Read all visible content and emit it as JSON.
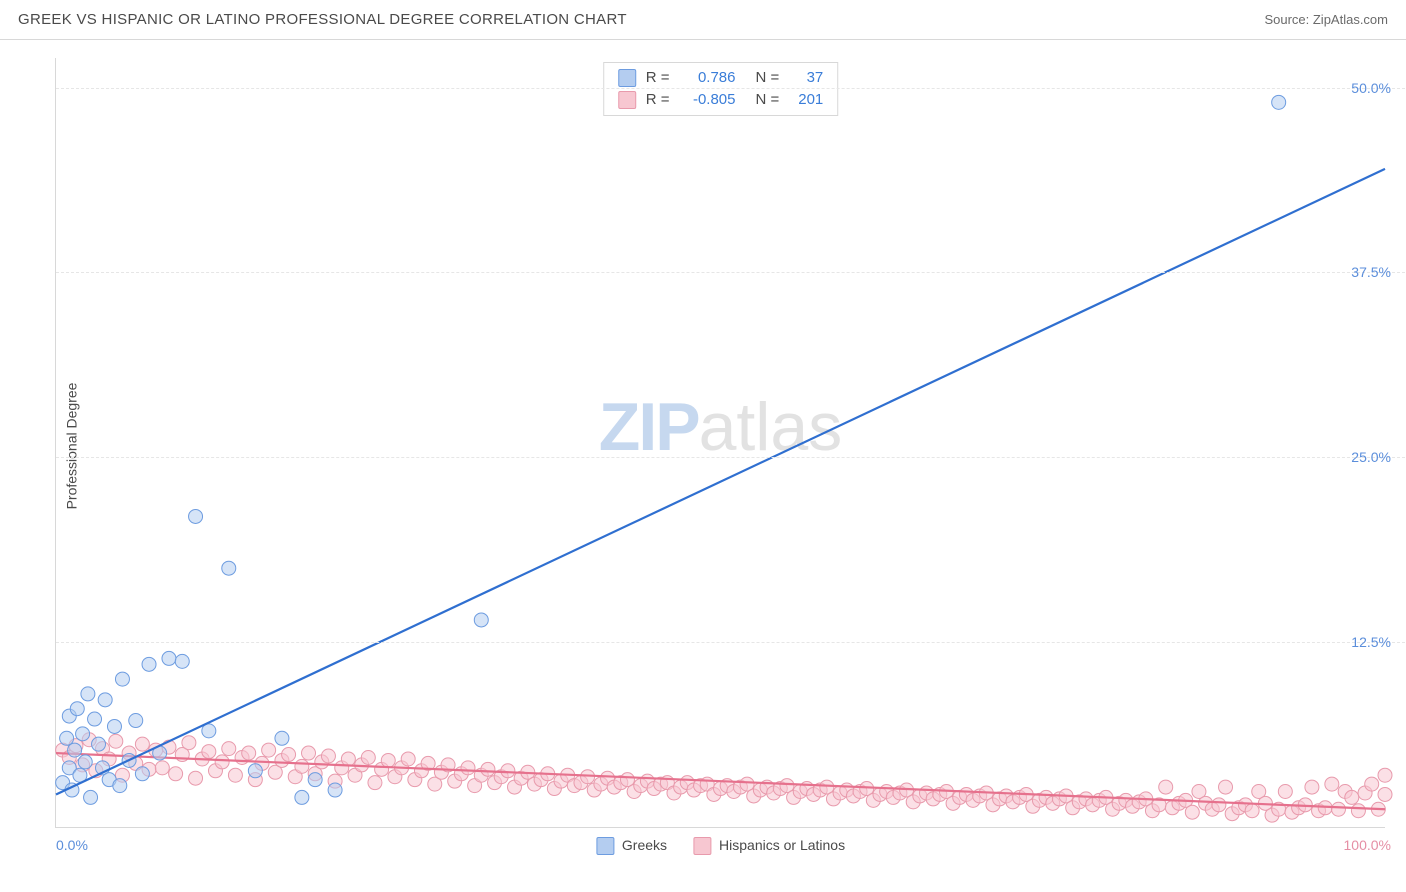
{
  "header": {
    "title": "GREEK VS HISPANIC OR LATINO PROFESSIONAL DEGREE CORRELATION CHART",
    "source_prefix": "Source: ",
    "source_name": "ZipAtlas.com"
  },
  "axes": {
    "ylabel": "Professional Degree",
    "xlim": [
      0,
      100
    ],
    "ylim": [
      0,
      52
    ],
    "yticks": [
      {
        "v": 12.5,
        "label": "12.5%",
        "color": "#5b8edb"
      },
      {
        "v": 25.0,
        "label": "25.0%",
        "color": "#5b8edb"
      },
      {
        "v": 37.5,
        "label": "37.5%",
        "color": "#5b8edb"
      },
      {
        "v": 50.0,
        "label": "50.0%",
        "color": "#5b8edb"
      }
    ],
    "xticks": [
      {
        "v": 0,
        "label": "0.0%",
        "color": "#5b8edb",
        "align": "left"
      },
      {
        "v": 100,
        "label": "100.0%",
        "color": "#e58fa5",
        "align": "right"
      }
    ]
  },
  "series": {
    "greek": {
      "label": "Greeks",
      "fill": "#b4cdf0",
      "stroke": "#6d9ce0",
      "line_color": "#2f6fd0",
      "marker_r": 7,
      "marker_opacity": 0.55,
      "line_width": 2.2,
      "trend": {
        "x1": 0,
        "y1": 2.2,
        "x2": 100,
        "y2": 44.5
      },
      "R": "0.786",
      "N": "37",
      "points": [
        [
          0.5,
          3.0
        ],
        [
          0.8,
          6.0
        ],
        [
          1.0,
          4.0
        ],
        [
          1.0,
          7.5
        ],
        [
          1.2,
          2.5
        ],
        [
          1.4,
          5.2
        ],
        [
          1.6,
          8.0
        ],
        [
          1.8,
          3.5
        ],
        [
          2.0,
          6.3
        ],
        [
          2.2,
          4.4
        ],
        [
          2.4,
          9.0
        ],
        [
          2.6,
          2.0
        ],
        [
          2.9,
          7.3
        ],
        [
          3.2,
          5.6
        ],
        [
          3.5,
          4.0
        ],
        [
          3.7,
          8.6
        ],
        [
          4.0,
          3.2
        ],
        [
          4.4,
          6.8
        ],
        [
          4.8,
          2.8
        ],
        [
          5.0,
          10.0
        ],
        [
          5.5,
          4.5
        ],
        [
          6.0,
          7.2
        ],
        [
          6.5,
          3.6
        ],
        [
          7.0,
          11.0
        ],
        [
          7.8,
          5.0
        ],
        [
          8.5,
          11.4
        ],
        [
          9.5,
          11.2
        ],
        [
          10.5,
          21.0
        ],
        [
          11.5,
          6.5
        ],
        [
          13.0,
          17.5
        ],
        [
          15.0,
          3.8
        ],
        [
          17.0,
          6.0
        ],
        [
          18.5,
          2.0
        ],
        [
          19.5,
          3.2
        ],
        [
          21.0,
          2.5
        ],
        [
          32.0,
          14.0
        ],
        [
          92.0,
          49.0
        ]
      ]
    },
    "hispanic": {
      "label": "Hispanics or Latinos",
      "fill": "#f7c7d1",
      "stroke": "#e89aac",
      "line_color": "#e6718d",
      "marker_r": 7,
      "marker_opacity": 0.55,
      "line_width": 2.2,
      "trend": {
        "x1": 0,
        "y1": 5.0,
        "x2": 100,
        "y2": 1.2
      },
      "R": "-0.805",
      "N": "201",
      "points": [
        [
          0.5,
          5.2
        ],
        [
          1.0,
          4.7
        ],
        [
          1.5,
          5.5
        ],
        [
          2.0,
          4.2
        ],
        [
          2.5,
          5.9
        ],
        [
          3.0,
          3.8
        ],
        [
          3.5,
          5.3
        ],
        [
          4.0,
          4.6
        ],
        [
          4.5,
          5.8
        ],
        [
          5.0,
          3.5
        ],
        [
          5.5,
          5.0
        ],
        [
          6.0,
          4.3
        ],
        [
          6.5,
          5.6
        ],
        [
          7.0,
          3.9
        ],
        [
          7.5,
          5.2
        ],
        [
          8.0,
          4.0
        ],
        [
          8.5,
          5.4
        ],
        [
          9.0,
          3.6
        ],
        [
          9.5,
          4.9
        ],
        [
          10.0,
          5.7
        ],
        [
          10.5,
          3.3
        ],
        [
          11.0,
          4.6
        ],
        [
          11.5,
          5.1
        ],
        [
          12.0,
          3.8
        ],
        [
          12.5,
          4.4
        ],
        [
          13.0,
          5.3
        ],
        [
          13.5,
          3.5
        ],
        [
          14.0,
          4.7
        ],
        [
          14.5,
          5.0
        ],
        [
          15.0,
          3.2
        ],
        [
          15.5,
          4.3
        ],
        [
          16.0,
          5.2
        ],
        [
          16.5,
          3.7
        ],
        [
          17.0,
          4.5
        ],
        [
          17.5,
          4.9
        ],
        [
          18.0,
          3.4
        ],
        [
          18.5,
          4.1
        ],
        [
          19.0,
          5.0
        ],
        [
          19.5,
          3.6
        ],
        [
          20.0,
          4.4
        ],
        [
          20.5,
          4.8
        ],
        [
          21.0,
          3.1
        ],
        [
          21.5,
          4.0
        ],
        [
          22.0,
          4.6
        ],
        [
          22.5,
          3.5
        ],
        [
          23.0,
          4.2
        ],
        [
          23.5,
          4.7
        ],
        [
          24.0,
          3.0
        ],
        [
          24.5,
          3.9
        ],
        [
          25.0,
          4.5
        ],
        [
          25.5,
          3.4
        ],
        [
          26.0,
          4.0
        ],
        [
          26.5,
          4.6
        ],
        [
          27.0,
          3.2
        ],
        [
          27.5,
          3.8
        ],
        [
          28.0,
          4.3
        ],
        [
          28.5,
          2.9
        ],
        [
          29.0,
          3.7
        ],
        [
          29.5,
          4.2
        ],
        [
          30.0,
          3.1
        ],
        [
          30.5,
          3.6
        ],
        [
          31.0,
          4.0
        ],
        [
          31.5,
          2.8
        ],
        [
          32.0,
          3.5
        ],
        [
          32.5,
          3.9
        ],
        [
          33.0,
          3.0
        ],
        [
          33.5,
          3.4
        ],
        [
          34.0,
          3.8
        ],
        [
          34.5,
          2.7
        ],
        [
          35.0,
          3.3
        ],
        [
          35.5,
          3.7
        ],
        [
          36.0,
          2.9
        ],
        [
          36.5,
          3.2
        ],
        [
          37.0,
          3.6
        ],
        [
          37.5,
          2.6
        ],
        [
          38.0,
          3.1
        ],
        [
          38.5,
          3.5
        ],
        [
          39.0,
          2.8
        ],
        [
          39.5,
          3.0
        ],
        [
          40.0,
          3.4
        ],
        [
          40.5,
          2.5
        ],
        [
          41.0,
          2.9
        ],
        [
          41.5,
          3.3
        ],
        [
          42.0,
          2.7
        ],
        [
          42.5,
          3.0
        ],
        [
          43.0,
          3.2
        ],
        [
          43.5,
          2.4
        ],
        [
          44.0,
          2.8
        ],
        [
          44.5,
          3.1
        ],
        [
          45.0,
          2.6
        ],
        [
          45.5,
          2.9
        ],
        [
          46.0,
          3.0
        ],
        [
          46.5,
          2.3
        ],
        [
          47.0,
          2.7
        ],
        [
          47.5,
          3.0
        ],
        [
          48.0,
          2.5
        ],
        [
          48.5,
          2.8
        ],
        [
          49.0,
          2.9
        ],
        [
          49.5,
          2.2
        ],
        [
          50.0,
          2.6
        ],
        [
          50.5,
          2.8
        ],
        [
          51.0,
          2.4
        ],
        [
          51.5,
          2.7
        ],
        [
          52.0,
          2.9
        ],
        [
          52.5,
          2.1
        ],
        [
          53.0,
          2.5
        ],
        [
          53.5,
          2.7
        ],
        [
          54.0,
          2.3
        ],
        [
          54.5,
          2.6
        ],
        [
          55.0,
          2.8
        ],
        [
          55.5,
          2.0
        ],
        [
          56.0,
          2.4
        ],
        [
          56.5,
          2.6
        ],
        [
          57.0,
          2.2
        ],
        [
          57.5,
          2.5
        ],
        [
          58.0,
          2.7
        ],
        [
          58.5,
          1.9
        ],
        [
          59.0,
          2.3
        ],
        [
          59.5,
          2.5
        ],
        [
          60.0,
          2.1
        ],
        [
          60.5,
          2.4
        ],
        [
          61.0,
          2.6
        ],
        [
          61.5,
          1.8
        ],
        [
          62.0,
          2.2
        ],
        [
          62.5,
          2.4
        ],
        [
          63.0,
          2.0
        ],
        [
          63.5,
          2.3
        ],
        [
          64.0,
          2.5
        ],
        [
          64.5,
          1.7
        ],
        [
          65.0,
          2.1
        ],
        [
          65.5,
          2.3
        ],
        [
          66.0,
          1.9
        ],
        [
          66.5,
          2.2
        ],
        [
          67.0,
          2.4
        ],
        [
          67.5,
          1.6
        ],
        [
          68.0,
          2.0
        ],
        [
          68.5,
          2.2
        ],
        [
          69.0,
          1.8
        ],
        [
          69.5,
          2.1
        ],
        [
          70.0,
          2.3
        ],
        [
          70.5,
          1.5
        ],
        [
          71.0,
          1.9
        ],
        [
          71.5,
          2.1
        ],
        [
          72.0,
          1.7
        ],
        [
          72.5,
          2.0
        ],
        [
          73.0,
          2.2
        ],
        [
          73.5,
          1.4
        ],
        [
          74.0,
          1.8
        ],
        [
          74.5,
          2.0
        ],
        [
          75.0,
          1.6
        ],
        [
          75.5,
          1.9
        ],
        [
          76.0,
          2.1
        ],
        [
          76.5,
          1.3
        ],
        [
          77.0,
          1.7
        ],
        [
          77.5,
          1.9
        ],
        [
          78.0,
          1.5
        ],
        [
          78.5,
          1.8
        ],
        [
          79.0,
          2.0
        ],
        [
          79.5,
          1.2
        ],
        [
          80.0,
          1.6
        ],
        [
          80.5,
          1.8
        ],
        [
          81.0,
          1.4
        ],
        [
          81.5,
          1.7
        ],
        [
          82.0,
          1.9
        ],
        [
          82.5,
          1.1
        ],
        [
          83.0,
          1.5
        ],
        [
          83.5,
          2.7
        ],
        [
          84.0,
          1.3
        ],
        [
          84.5,
          1.6
        ],
        [
          85.0,
          1.8
        ],
        [
          85.5,
          1.0
        ],
        [
          86.0,
          2.4
        ],
        [
          86.5,
          1.6
        ],
        [
          87.0,
          1.2
        ],
        [
          87.5,
          1.5
        ],
        [
          88.0,
          2.7
        ],
        [
          88.5,
          0.9
        ],
        [
          89.0,
          1.3
        ],
        [
          89.5,
          1.5
        ],
        [
          90.0,
          1.1
        ],
        [
          90.5,
          2.4
        ],
        [
          91.0,
          1.6
        ],
        [
          91.5,
          0.8
        ],
        [
          92.0,
          1.2
        ],
        [
          92.5,
          2.4
        ],
        [
          93.0,
          1.0
        ],
        [
          93.5,
          1.3
        ],
        [
          94.0,
          1.5
        ],
        [
          94.5,
          2.7
        ],
        [
          95.0,
          1.1
        ],
        [
          95.5,
          1.3
        ],
        [
          96.0,
          2.9
        ],
        [
          96.5,
          1.2
        ],
        [
          97.0,
          2.4
        ],
        [
          97.5,
          2.0
        ],
        [
          98.0,
          1.1
        ],
        [
          98.5,
          2.3
        ],
        [
          99.0,
          2.9
        ],
        [
          99.5,
          1.2
        ],
        [
          100.0,
          2.2
        ],
        [
          100.0,
          3.5
        ]
      ]
    }
  },
  "legend_bottom": [
    {
      "key": "greek"
    },
    {
      "key": "hispanic"
    }
  ],
  "stats_box": {
    "rows": [
      {
        "key": "greek"
      },
      {
        "key": "hispanic"
      }
    ],
    "R_label": "R =",
    "N_label": "N ="
  },
  "watermark": {
    "zip": "ZIP",
    "atlas": "atlas"
  },
  "colors": {
    "background": "#ffffff",
    "grid": "#e6e6e6",
    "border": "#d8d8d8",
    "text": "#4a4a4a",
    "value_blue": "#3a7dd8",
    "value_pink": "#3a7dd8"
  }
}
